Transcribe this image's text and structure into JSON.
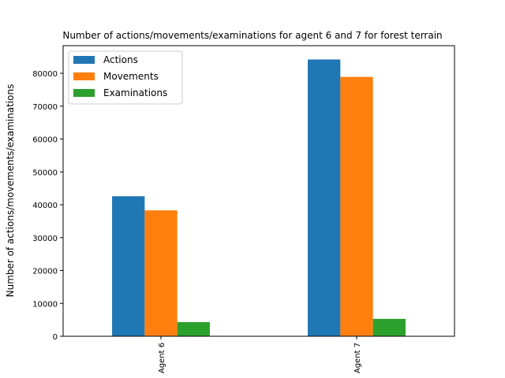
{
  "chart_data": {
    "type": "bar",
    "title": "Number of actions/movements/examinations for agent 6 and 7 for forest terrain",
    "xlabel": "",
    "ylabel": "Number of actions/movements/examinations",
    "categories": [
      "Agent 6",
      "Agent 7"
    ],
    "series": [
      {
        "name": "Actions",
        "color": "#1f77b4",
        "values": [
          42600,
          84200
        ]
      },
      {
        "name": "Movements",
        "color": "#ff7f0e",
        "values": [
          38300,
          78900
        ]
      },
      {
        "name": "Examinations",
        "color": "#2ca02c",
        "values": [
          4300,
          5300
        ]
      }
    ],
    "ylim": [
      0,
      88400
    ],
    "yticks": [
      0,
      10000,
      20000,
      30000,
      40000,
      50000,
      60000,
      70000,
      80000
    ],
    "ytick_labels": [
      "0",
      "10000",
      "20000",
      "30000",
      "40000",
      "50000",
      "60000",
      "70000",
      "80000"
    ],
    "legend_position": "upper-left",
    "grid": false
  }
}
